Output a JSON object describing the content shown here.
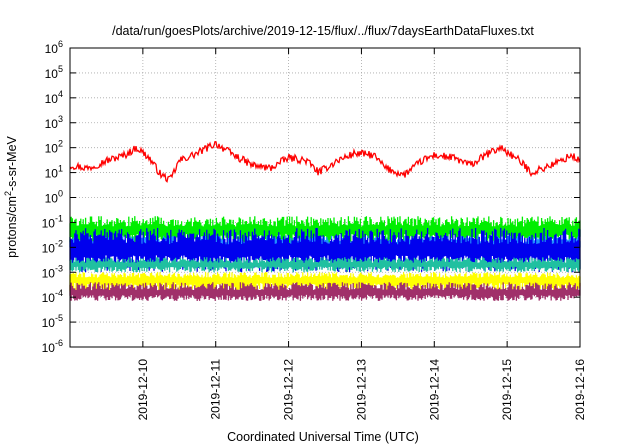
{
  "chart_data": {
    "type": "line",
    "title": "/data/run/goesPlots/archive/2019-12-15/flux/../flux/7daysEarthDataFluxes.txt",
    "xlabel": "Coordinated Universal Time (UTC)",
    "ylabel": "protons/cm²-s-sr-MeV",
    "ylabel_parts": {
      "base": "protons/cm",
      "sup": "2",
      "rest": "-s-sr-MeV"
    },
    "xlim": [
      "2019-12-09T00:00",
      "2019-12-16T00:00"
    ],
    "ylim": [
      1e-06,
      1000000.0
    ],
    "y_scale": "log",
    "grid": true,
    "legend": "none",
    "x_ticks": [
      "2019-12-10",
      "2019-12-11",
      "2019-12-12",
      "2019-12-13",
      "2019-12-14",
      "2019-12-15",
      "2019-12-16"
    ],
    "y_ticks": [
      {
        "base": "10",
        "exp": "-6"
      },
      {
        "base": "10",
        "exp": "-5"
      },
      {
        "base": "10",
        "exp": "-4"
      },
      {
        "base": "10",
        "exp": "-3"
      },
      {
        "base": "10",
        "exp": "-2"
      },
      {
        "base": "10",
        "exp": "-1"
      },
      {
        "base": "10",
        "exp": "0"
      },
      {
        "base": "10",
        "exp": "1"
      },
      {
        "base": "10",
        "exp": "2"
      },
      {
        "base": "10",
        "exp": "3"
      },
      {
        "base": "10",
        "exp": "4"
      },
      {
        "base": "10",
        "exp": "5"
      },
      {
        "base": "10",
        "exp": "6"
      }
    ],
    "series": [
      {
        "color": "#ff0000",
        "x": [
          "2019-12-09T00:00",
          "2019-12-09T06:00",
          "2019-12-09T12:00",
          "2019-12-09T18:00",
          "2019-12-09T22:00",
          "2019-12-10T02:00",
          "2019-12-10T06:00",
          "2019-12-10T09:00",
          "2019-12-10T12:00",
          "2019-12-10T18:00",
          "2019-12-11T00:00",
          "2019-12-11T06:00",
          "2019-12-11T12:00",
          "2019-12-11T18:00",
          "2019-12-12T00:00",
          "2019-12-12T06:00",
          "2019-12-12T10:00",
          "2019-12-12T16:00",
          "2019-12-12T22:00",
          "2019-12-13T04:00",
          "2019-12-13T08:00",
          "2019-12-13T14:00",
          "2019-12-13T20:00",
          "2019-12-14T00:00",
          "2019-12-14T06:00",
          "2019-12-14T12:00",
          "2019-12-14T18:00",
          "2019-12-14T22:00",
          "2019-12-15T04:00",
          "2019-12-15T08:00",
          "2019-12-15T12:00",
          "2019-12-15T18:00",
          "2019-12-15T21:00",
          "2019-12-16T00:00"
        ],
        "y": [
          20,
          15,
          30,
          50,
          100,
          40,
          8,
          5,
          30,
          60,
          150,
          50,
          20,
          15,
          40,
          30,
          10,
          30,
          60,
          50,
          15,
          8,
          30,
          50,
          40,
          20,
          60,
          100,
          30,
          10,
          15,
          30,
          50,
          30
        ]
      },
      {
        "color": "#00ee00",
        "x": [
          "2019-12-09T00:00",
          "2019-12-16T00:00"
        ],
        "y": [
          0.05,
          0.05
        ],
        "band_low": 0.012,
        "band_high": 0.18
      },
      {
        "color": "#1e90ff",
        "x": [
          "2019-12-09T00:00",
          "2019-12-16T00:00"
        ],
        "y": [
          0.012,
          0.012
        ],
        "band_low": 0.006,
        "band_high": 0.03
      },
      {
        "color": "#0000ee",
        "x": [
          "2019-12-09T00:00",
          "2019-12-16T00:00"
        ],
        "y": [
          0.008,
          0.008
        ],
        "band_low": 0.001,
        "band_high": 0.06
      },
      {
        "color": "#20c0a0",
        "x": [
          "2019-12-09T00:00",
          "2019-12-16T00:00"
        ],
        "y": [
          0.002,
          0.002
        ],
        "band_low": 0.001,
        "band_high": 0.004
      },
      {
        "color": "#ffff00",
        "x": [
          "2019-12-09T00:00",
          "2019-12-16T00:00"
        ],
        "y": [
          0.0005,
          0.0005
        ],
        "band_low": 0.00015,
        "band_high": 0.001
      },
      {
        "color": "#a0306a",
        "x": [
          "2019-12-09T00:00",
          "2019-12-16T00:00"
        ],
        "y": [
          0.00015,
          0.00015
        ],
        "band_low": 7e-05,
        "band_high": 0.0004
      }
    ]
  }
}
